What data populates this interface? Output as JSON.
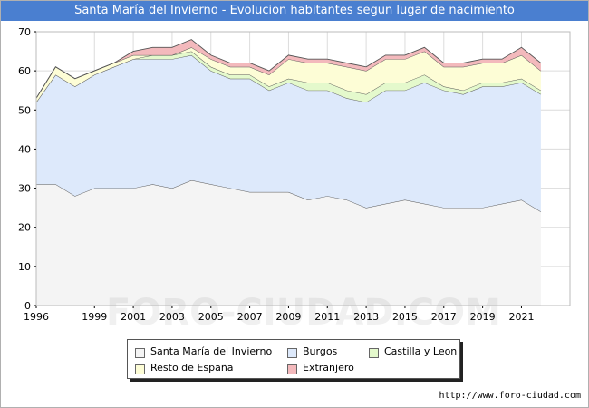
{
  "title": "Santa María del Invierno - Evolucion habitantes segun lugar de nacimiento",
  "watermark": "FORO-CIUDAD.COM",
  "footer_url": "http://www.foro-ciudad.com",
  "colors": {
    "title_bg": "#4a7fd0",
    "santa_maria": "#f4f4f4",
    "burgos": "#dde9fb",
    "castilla": "#e4f9cc",
    "resto": "#fdfdd6",
    "extranjero": "#f3b9bc"
  },
  "chart_data": {
    "type": "area",
    "stacked": true,
    "title": "Santa María del Invierno - Evolucion habitantes segun lugar de nacimiento",
    "x": [
      1996,
      1997,
      1998,
      1999,
      2000,
      2001,
      2002,
      2003,
      2004,
      2005,
      2006,
      2007,
      2008,
      2009,
      2010,
      2011,
      2012,
      2013,
      2014,
      2015,
      2016,
      2017,
      2018,
      2019,
      2020,
      2021,
      2022
    ],
    "x_ticks": [
      1996,
      1999,
      2001,
      2003,
      2005,
      2007,
      2009,
      2011,
      2013,
      2015,
      2017,
      2019,
      2021
    ],
    "y_ticks": [
      0,
      10,
      20,
      30,
      40,
      50,
      60,
      70
    ],
    "ylim": [
      0,
      70
    ],
    "grid": true,
    "legend_position": "bottom",
    "series": [
      {
        "name": "Santa María del Invierno",
        "color": "#f4f4f4",
        "values": [
          31,
          31,
          28,
          30,
          30,
          30,
          31,
          30,
          32,
          31,
          30,
          29,
          29,
          29,
          27,
          28,
          27,
          25,
          26,
          27,
          26,
          25,
          25,
          25,
          26,
          27,
          24
        ]
      },
      {
        "name": "Burgos",
        "color": "#dde9fb",
        "values": [
          21,
          28,
          28,
          29,
          31,
          33,
          32,
          33,
          32,
          29,
          28,
          29,
          26,
          28,
          28,
          27,
          26,
          27,
          29,
          28,
          31,
          30,
          29,
          31,
          30,
          30,
          30
        ]
      },
      {
        "name": "Castilla y Leon",
        "color": "#e4f9cc",
        "values": [
          0,
          0,
          0,
          0,
          0,
          0,
          1,
          1,
          1,
          1,
          1,
          1,
          1,
          1,
          2,
          2,
          2,
          2,
          2,
          2,
          2,
          1,
          1,
          1,
          1,
          1,
          1
        ]
      },
      {
        "name": "Resto de España",
        "color": "#fdfdd6",
        "values": [
          1,
          2,
          2,
          1,
          1,
          1,
          0,
          0,
          1,
          2,
          2,
          2,
          3,
          5,
          5,
          5,
          6,
          6,
          6,
          6,
          6,
          5,
          6,
          5,
          5,
          6,
          5
        ]
      },
      {
        "name": "Extranjero",
        "color": "#f3b9bc",
        "values": [
          0,
          0,
          0,
          0,
          0,
          1,
          2,
          2,
          2,
          1,
          1,
          1,
          1,
          1,
          1,
          1,
          1,
          1,
          1,
          1,
          1,
          1,
          1,
          1,
          1,
          2,
          2
        ]
      }
    ]
  }
}
